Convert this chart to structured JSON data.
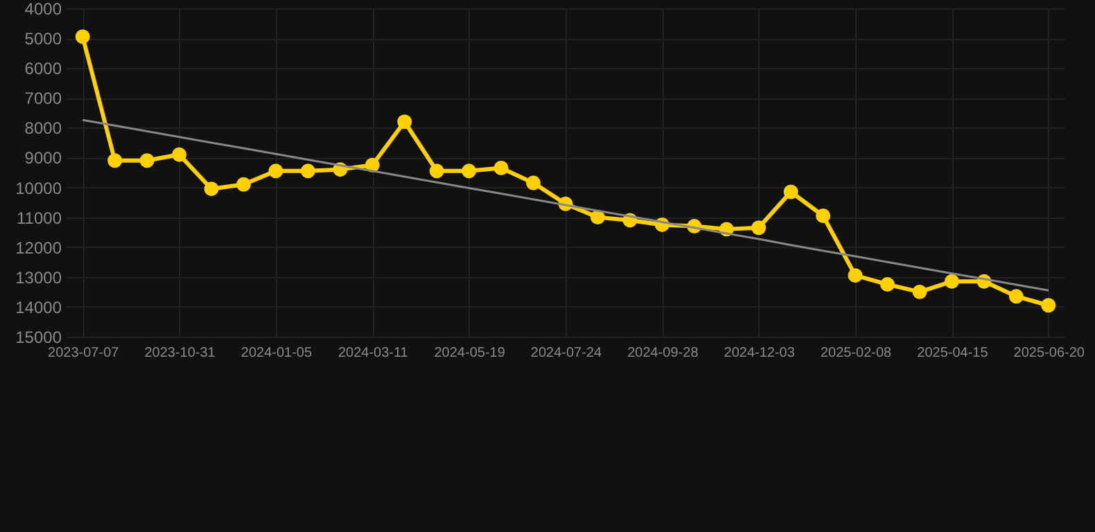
{
  "chart_data": {
    "type": "line",
    "categories": [
      "2023-07-07",
      null,
      null,
      "2023-10-31",
      null,
      null,
      "2024-01-05",
      null,
      null,
      "2024-03-11",
      null,
      null,
      "2024-05-19",
      null,
      null,
      "2024-07-24",
      null,
      null,
      "2024-09-28",
      null,
      null,
      "2024-12-03",
      null,
      null,
      "2025-02-08",
      null,
      null,
      "2025-04-15",
      null,
      null,
      "2025-06-20"
    ],
    "series": [
      {
        "color": "#ffd000",
        "values": [
          4950,
          9100,
          9100,
          8900,
          10050,
          9900,
          9450,
          9450,
          9400,
          9250,
          7800,
          9450,
          9450,
          9350,
          9850,
          10550,
          11000,
          11100,
          11250,
          11300,
          11400,
          11350,
          10150,
          10950,
          12950,
          13250,
          13500,
          13150,
          13150,
          13650,
          13950
        ]
      },
      {
        "type": "line",
        "color": "#888888",
        "marker": "none",
        "values": [
          7740,
          7930,
          8120,
          8310,
          8500,
          8690,
          8880,
          9070,
          9260,
          9450,
          9640,
          9830,
          10020,
          10210,
          10400,
          10590,
          10780,
          10970,
          11160,
          11350,
          11540,
          11730,
          11930,
          12120,
          12310,
          12500,
          12690,
          12880,
          13070,
          13260,
          13450
        ]
      }
    ],
    "ylim": [
      15000,
      4000
    ],
    "yticks": [
      4000,
      5000,
      6000,
      7000,
      8000,
      9000,
      10000,
      11000,
      12000,
      13000,
      14000,
      15000
    ],
    "grid": true,
    "marker": "circle"
  }
}
